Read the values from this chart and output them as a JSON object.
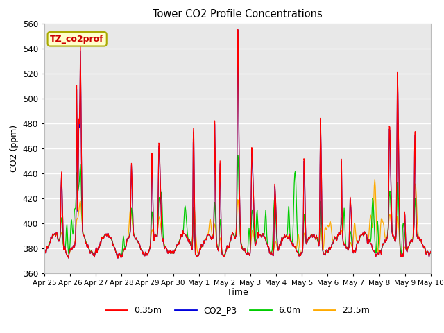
{
  "title": "Tower CO2 Profile Concentrations",
  "xlabel": "Time",
  "ylabel": "CO2 (ppm)",
  "ylim": [
    360,
    560
  ],
  "yticks": [
    360,
    380,
    400,
    420,
    440,
    460,
    480,
    500,
    520,
    540,
    560
  ],
  "xtick_labels": [
    "Apr 25",
    "Apr 26",
    "Apr 27",
    "Apr 28",
    "Apr 29",
    "Apr 30",
    "May 1",
    "May 2",
    "May 3",
    "May 4",
    "May 5",
    "May 6",
    "May 7",
    "May 8",
    "May 9",
    "May 10"
  ],
  "series_colors": [
    "#ff0000",
    "#0000dd",
    "#00cc00",
    "#ffaa00"
  ],
  "series_labels": [
    "0.35m",
    "CO2_P3",
    "6.0m",
    "23.5m"
  ],
  "annotation_text": "TZ_co2prof",
  "annotation_bg": "#ffffcc",
  "annotation_fg": "#cc0000",
  "annotation_border": "#aaaa00",
  "plot_bg": "#e8e8e8",
  "grid_color": "#ffffff",
  "n_points": 720,
  "seed": 7
}
